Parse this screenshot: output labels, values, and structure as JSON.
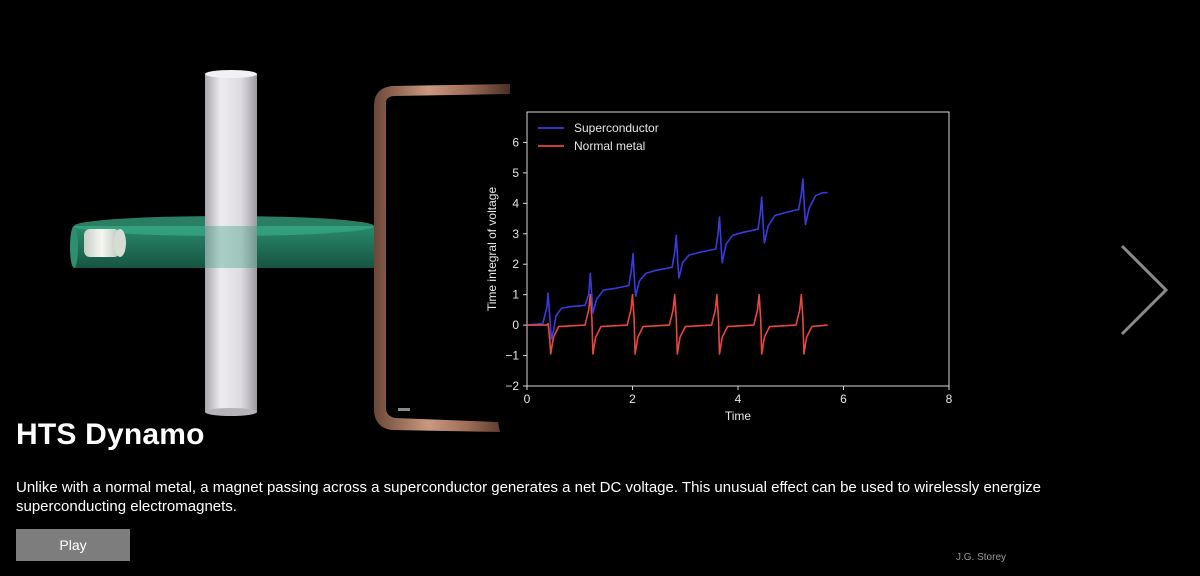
{
  "slide": {
    "title": "HTS Dynamo",
    "description": "Unlike with a normal metal, a magnet passing across a superconductor generates a net DC voltage. This unusual effect can be used to wirelessly energize superconducting electromagnets.",
    "play_label": "Play",
    "credit": "J.G. Storey"
  },
  "icons": {
    "next": "chevron-right-icon"
  },
  "colors": {
    "background": "#000000",
    "superconductor": "#3a3adf",
    "normal_metal": "#e8473e",
    "disk": "#2a8c6e",
    "copper": "#b37a5f"
  },
  "chart_data": {
    "type": "line",
    "xlabel": "Time",
    "ylabel": "Time integral of voltage",
    "xlim": [
      0,
      8
    ],
    "ylim": [
      -2,
      7
    ],
    "xticks": [
      0,
      2,
      4,
      6,
      8
    ],
    "yticks": [
      -2,
      -1,
      0,
      1,
      2,
      3,
      4,
      5,
      6
    ],
    "legend_position": "top-left",
    "series": [
      {
        "name": "Superconductor",
        "color": "#3a3adf",
        "points": [
          [
            0.0,
            0
          ],
          [
            0.3,
            0.05
          ],
          [
            0.38,
            0.6
          ],
          [
            0.4,
            1.05
          ],
          [
            0.43,
            0.3
          ],
          [
            0.46,
            -0.45
          ],
          [
            0.5,
            -0.2
          ],
          [
            0.55,
            0.3
          ],
          [
            0.65,
            0.55
          ],
          [
            0.8,
            0.6
          ],
          [
            1.1,
            0.65
          ],
          [
            1.17,
            1.0
          ],
          [
            1.2,
            1.7
          ],
          [
            1.23,
            0.9
          ],
          [
            1.25,
            0.4
          ],
          [
            1.32,
            0.85
          ],
          [
            1.45,
            1.15
          ],
          [
            1.65,
            1.2
          ],
          [
            1.93,
            1.3
          ],
          [
            1.98,
            1.8
          ],
          [
            2.01,
            2.35
          ],
          [
            2.04,
            1.4
          ],
          [
            2.06,
            0.95
          ],
          [
            2.13,
            1.45
          ],
          [
            2.25,
            1.7
          ],
          [
            2.45,
            1.8
          ],
          [
            2.75,
            1.9
          ],
          [
            2.8,
            2.4
          ],
          [
            2.83,
            2.95
          ],
          [
            2.86,
            2.0
          ],
          [
            2.88,
            1.55
          ],
          [
            2.95,
            2.05
          ],
          [
            3.07,
            2.3
          ],
          [
            3.3,
            2.4
          ],
          [
            3.58,
            2.5
          ],
          [
            3.62,
            3.0
          ],
          [
            3.65,
            3.55
          ],
          [
            3.68,
            2.6
          ],
          [
            3.7,
            2.05
          ],
          [
            3.77,
            2.65
          ],
          [
            3.9,
            2.95
          ],
          [
            4.1,
            3.05
          ],
          [
            4.38,
            3.15
          ],
          [
            4.42,
            3.65
          ],
          [
            4.45,
            4.2
          ],
          [
            4.48,
            3.2
          ],
          [
            4.5,
            2.7
          ],
          [
            4.57,
            3.25
          ],
          [
            4.7,
            3.6
          ],
          [
            4.9,
            3.7
          ],
          [
            5.15,
            3.8
          ],
          [
            5.2,
            4.3
          ],
          [
            5.23,
            4.8
          ],
          [
            5.26,
            3.8
          ],
          [
            5.28,
            3.3
          ],
          [
            5.35,
            3.85
          ],
          [
            5.47,
            4.25
          ],
          [
            5.6,
            4.35
          ],
          [
            5.7,
            4.35
          ]
        ]
      },
      {
        "name": "Normal metal",
        "color": "#e8473e",
        "points": [
          [
            0.0,
            0
          ],
          [
            0.38,
            0
          ],
          [
            0.4,
            0.05
          ],
          [
            0.43,
            -0.45
          ],
          [
            0.45,
            -0.95
          ],
          [
            0.5,
            -0.4
          ],
          [
            0.6,
            -0.05
          ],
          [
            1.1,
            0
          ],
          [
            1.17,
            0.5
          ],
          [
            1.2,
            1.0
          ],
          [
            1.23,
            0.2
          ],
          [
            1.25,
            -0.95
          ],
          [
            1.3,
            -0.4
          ],
          [
            1.4,
            -0.05
          ],
          [
            1.9,
            0
          ],
          [
            1.97,
            0.5
          ],
          [
            2.0,
            1.0
          ],
          [
            2.03,
            0.2
          ],
          [
            2.05,
            -0.95
          ],
          [
            2.1,
            -0.4
          ],
          [
            2.2,
            -0.05
          ],
          [
            2.7,
            0
          ],
          [
            2.77,
            0.5
          ],
          [
            2.8,
            1.0
          ],
          [
            2.83,
            0.2
          ],
          [
            2.85,
            -0.95
          ],
          [
            2.9,
            -0.4
          ],
          [
            3.0,
            -0.05
          ],
          [
            3.5,
            0
          ],
          [
            3.57,
            0.5
          ],
          [
            3.6,
            1.0
          ],
          [
            3.63,
            0.2
          ],
          [
            3.65,
            -0.95
          ],
          [
            3.7,
            -0.4
          ],
          [
            3.8,
            -0.05
          ],
          [
            4.3,
            0
          ],
          [
            4.37,
            0.5
          ],
          [
            4.4,
            1.0
          ],
          [
            4.43,
            0.2
          ],
          [
            4.45,
            -0.95
          ],
          [
            4.5,
            -0.4
          ],
          [
            4.6,
            -0.05
          ],
          [
            5.1,
            0
          ],
          [
            5.17,
            0.5
          ],
          [
            5.2,
            1.0
          ],
          [
            5.23,
            0.2
          ],
          [
            5.25,
            -0.95
          ],
          [
            5.3,
            -0.4
          ],
          [
            5.4,
            -0.05
          ],
          [
            5.7,
            0
          ]
        ]
      }
    ]
  }
}
